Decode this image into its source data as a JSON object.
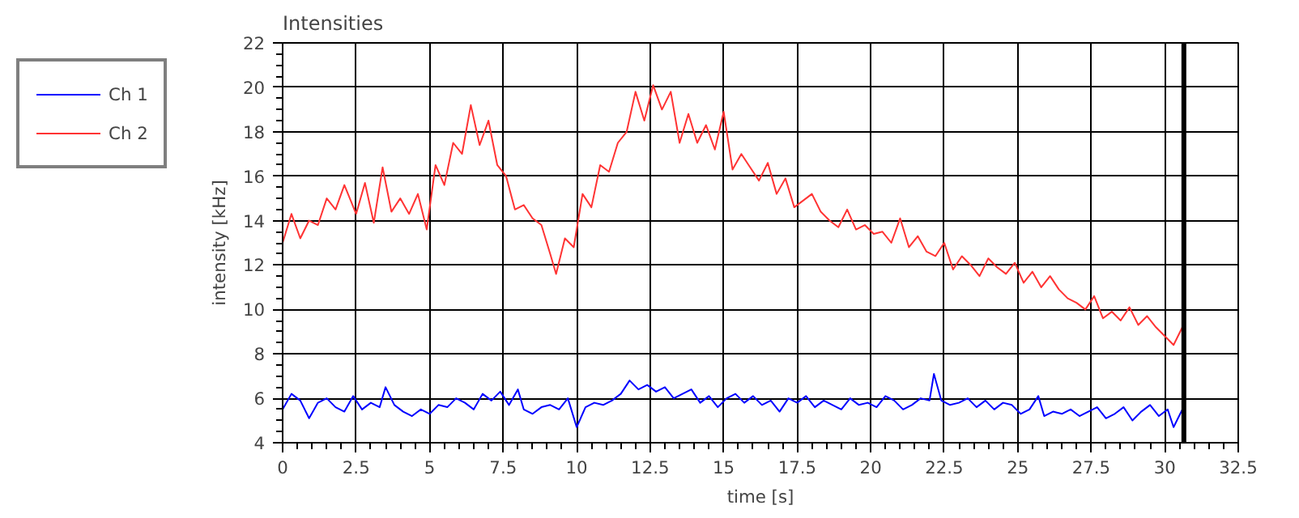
{
  "chart_data": {
    "type": "line",
    "title": "Intensities",
    "xlabel": "time [s]",
    "ylabel": "intensity [kHz]",
    "xlim": [
      0,
      32.5
    ],
    "xticks": [
      0,
      2.5,
      5,
      7.5,
      10,
      12.5,
      15,
      17.5,
      20,
      22.5,
      25,
      27.5,
      30,
      32.5
    ],
    "ylim": [
      4,
      22
    ],
    "yticks": [
      4,
      6,
      8,
      10,
      12,
      14,
      16,
      18,
      20,
      22
    ],
    "grid": true,
    "legend": "top left",
    "marker": "none",
    "line_style": "solid",
    "ref_lines": [
      {
        "axis": "x",
        "value": 30.65,
        "label": null,
        "color": "#000000"
      }
    ],
    "series": [
      {
        "name": "Ch 1",
        "color": "#0000ff",
        "x": [
          0,
          0.3,
          0.6,
          0.9,
          1.2,
          1.5,
          1.8,
          2.1,
          2.4,
          2.7,
          3,
          3.3,
          3.5,
          3.8,
          4.1,
          4.4,
          4.7,
          5,
          5.3,
          5.6,
          5.9,
          6.2,
          6.5,
          6.8,
          7.1,
          7.4,
          7.7,
          8,
          8.2,
          8.5,
          8.8,
          9.1,
          9.4,
          9.7,
          10,
          10.3,
          10.6,
          10.9,
          11.2,
          11.5,
          11.8,
          12.1,
          12.4,
          12.7,
          13,
          13.3,
          13.6,
          13.9,
          14.2,
          14.5,
          14.8,
          15.1,
          15.4,
          15.7,
          16,
          16.3,
          16.6,
          16.9,
          17.2,
          17.5,
          17.8,
          18.1,
          18.4,
          18.7,
          19,
          19.3,
          19.6,
          19.9,
          20.2,
          20.5,
          20.8,
          21.1,
          21.4,
          21.7,
          22,
          22.15,
          22.4,
          22.7,
          23,
          23.3,
          23.6,
          23.9,
          24.2,
          24.5,
          24.8,
          25.1,
          25.4,
          25.7,
          25.9,
          26.2,
          26.5,
          26.8,
          27.1,
          27.4,
          27.7,
          28,
          28.3,
          28.6,
          28.9,
          29.2,
          29.5,
          29.8,
          30.1,
          30.3,
          30.6
        ],
        "values": [
          5.5,
          6.2,
          5.9,
          5.1,
          5.8,
          6.0,
          5.6,
          5.4,
          6.1,
          5.5,
          5.8,
          5.6,
          6.5,
          5.7,
          5.4,
          5.2,
          5.5,
          5.3,
          5.7,
          5.6,
          6.0,
          5.8,
          5.5,
          6.2,
          5.9,
          6.3,
          5.7,
          6.4,
          5.5,
          5.3,
          5.6,
          5.7,
          5.5,
          6.0,
          4.7,
          5.6,
          5.8,
          5.7,
          5.9,
          6.2,
          6.8,
          6.4,
          6.6,
          6.3,
          6.5,
          6.0,
          6.2,
          6.4,
          5.8,
          6.1,
          5.6,
          6.0,
          6.2,
          5.8,
          6.1,
          5.7,
          5.9,
          5.4,
          6.0,
          5.8,
          6.1,
          5.6,
          5.9,
          5.7,
          5.5,
          6.0,
          5.7,
          5.8,
          5.6,
          6.1,
          5.9,
          5.5,
          5.7,
          6.0,
          5.9,
          7.1,
          5.9,
          5.7,
          5.8,
          6.0,
          5.6,
          5.9,
          5.5,
          5.8,
          5.7,
          5.3,
          5.5,
          6.1,
          5.2,
          5.4,
          5.3,
          5.5,
          5.2,
          5.4,
          5.6,
          5.1,
          5.3,
          5.6,
          5.0,
          5.4,
          5.7,
          5.2,
          5.5,
          4.7,
          5.5
        ]
      },
      {
        "name": "Ch 2",
        "color": "#ff3333",
        "x": [
          0,
          0.3,
          0.6,
          0.9,
          1.2,
          1.5,
          1.8,
          2.1,
          2.5,
          2.8,
          3.1,
          3.4,
          3.7,
          4,
          4.3,
          4.6,
          4.9,
          5.2,
          5.5,
          5.8,
          6.1,
          6.4,
          6.7,
          7,
          7.3,
          7.6,
          7.9,
          8.2,
          8.5,
          8.8,
          9.1,
          9.3,
          9.6,
          9.9,
          10.2,
          10.5,
          10.8,
          11.1,
          11.4,
          11.7,
          12,
          12.3,
          12.6,
          12.9,
          13.2,
          13.5,
          13.8,
          14.1,
          14.4,
          14.7,
          15,
          15.3,
          15.6,
          15.9,
          16.2,
          16.5,
          16.8,
          17.1,
          17.4,
          17.7,
          18,
          18.3,
          18.6,
          18.9,
          19.2,
          19.5,
          19.8,
          20.1,
          20.4,
          20.7,
          21,
          21.3,
          21.6,
          21.9,
          22.2,
          22.5,
          22.8,
          23.1,
          23.4,
          23.7,
          24,
          24.3,
          24.6,
          24.9,
          25.2,
          25.5,
          25.8,
          26.1,
          26.4,
          26.7,
          27,
          27.3,
          27.6,
          27.9,
          28.2,
          28.5,
          28.8,
          29.1,
          29.4,
          29.7,
          30,
          30.3,
          30.6
        ],
        "values": [
          13.0,
          14.3,
          13.2,
          14.0,
          13.8,
          15.0,
          14.5,
          15.6,
          14.3,
          15.7,
          13.9,
          16.4,
          14.4,
          15.0,
          14.3,
          15.2,
          13.6,
          16.5,
          15.6,
          17.5,
          17.0,
          19.2,
          17.4,
          18.5,
          16.5,
          16.0,
          14.5,
          14.7,
          14.1,
          13.8,
          12.5,
          11.6,
          13.2,
          12.8,
          15.2,
          14.6,
          16.5,
          16.2,
          17.5,
          18.0,
          19.8,
          18.5,
          20.1,
          19.0,
          19.8,
          17.5,
          18.8,
          17.5,
          18.3,
          17.2,
          18.9,
          16.3,
          17.0,
          16.4,
          15.8,
          16.6,
          15.2,
          15.9,
          14.6,
          14.9,
          15.2,
          14.4,
          14.0,
          13.7,
          14.5,
          13.6,
          13.8,
          13.4,
          13.5,
          13.0,
          14.1,
          12.8,
          13.3,
          12.6,
          12.4,
          13.0,
          11.8,
          12.4,
          12.0,
          11.5,
          12.3,
          11.9,
          11.6,
          12.1,
          11.2,
          11.7,
          11.0,
          11.5,
          10.9,
          10.5,
          10.3,
          10.0,
          10.6,
          9.6,
          9.9,
          9.5,
          10.1,
          9.3,
          9.7,
          9.2,
          8.8,
          8.4,
          9.2
        ]
      }
    ]
  }
}
